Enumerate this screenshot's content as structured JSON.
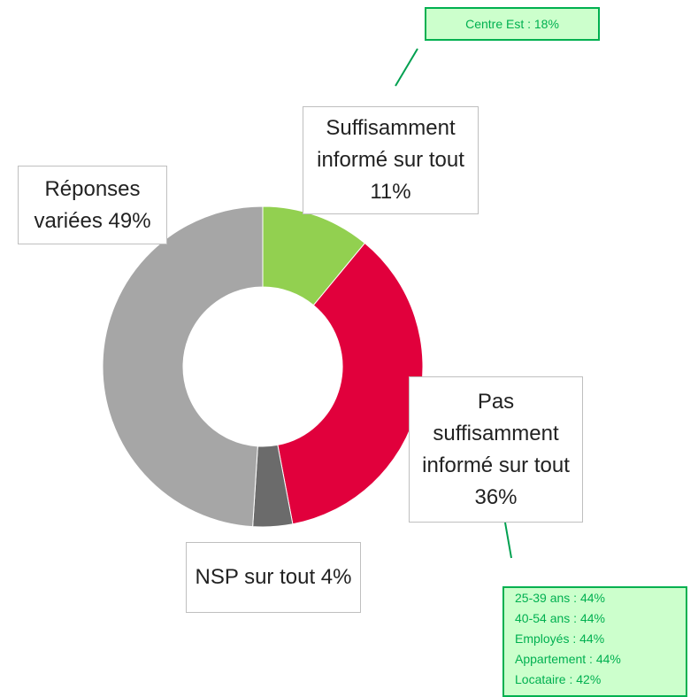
{
  "chart_data": {
    "type": "donut",
    "categories": [
      "Suffisamment informé sur tout",
      "Pas suffisamment informé sur tout",
      "NSP sur tout",
      "Réponses variées"
    ],
    "values": [
      11,
      36,
      4,
      49
    ],
    "value_labels": [
      "11%",
      "36%",
      "4%",
      "49%"
    ],
    "colors": [
      "#92d050",
      "#e1003c",
      "#6b6b6b",
      "#a6a6a6"
    ],
    "annotations": [
      {
        "lines": [
          "Centre Est : 18%"
        ]
      },
      {
        "lines": [
          "25-39 ans : 44%",
          "40-54 ans : 44%",
          "Employés : 44%",
          "Appartement : 44%",
          "Locataire : 42%"
        ]
      }
    ]
  }
}
